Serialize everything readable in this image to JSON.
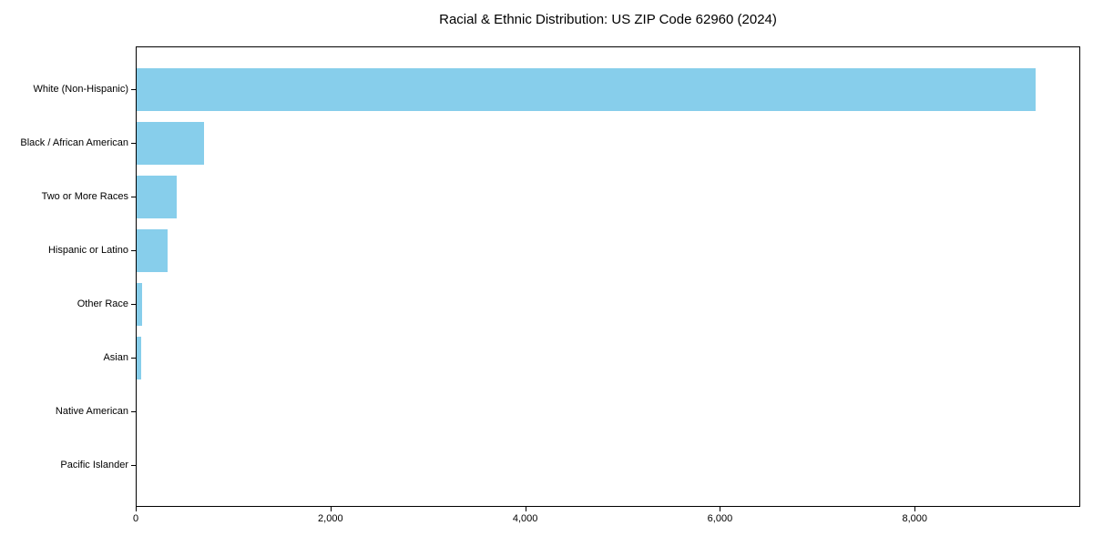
{
  "chart_data": {
    "type": "bar",
    "orientation": "horizontal",
    "title": "Racial & Ethnic Distribution: US ZIP Code 62960 (2024)",
    "categories": [
      "White (Non-Hispanic)",
      "Black / African American",
      "Two or More Races",
      "Hispanic or Latino",
      "Other Race",
      "Asian",
      "Native American",
      "Pacific Islander"
    ],
    "values": [
      9230,
      690,
      415,
      320,
      56,
      50,
      0,
      0
    ],
    "xlabel": "",
    "ylabel": "",
    "xlim": [
      0,
      9700
    ],
    "xticks": [
      {
        "value": 0,
        "label": "0"
      },
      {
        "value": 2000,
        "label": "2,000"
      },
      {
        "value": 4000,
        "label": "4,000"
      },
      {
        "value": 6000,
        "label": "6,000"
      },
      {
        "value": 8000,
        "label": "8,000"
      }
    ],
    "grid": false,
    "legend": null,
    "bar_color": "#87CEEB",
    "background_color": "#ffffff",
    "spine_color": "#000000",
    "text_color": "#000000"
  }
}
